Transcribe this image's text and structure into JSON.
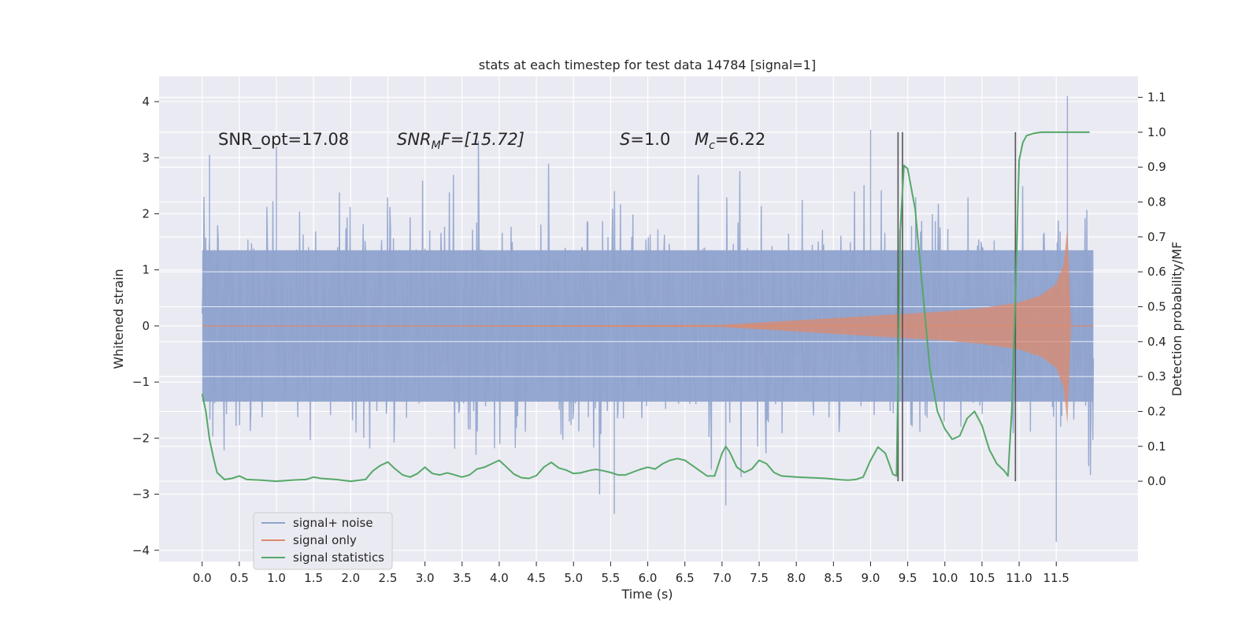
{
  "chart_data": {
    "type": "line",
    "title": "stats at each timestep for test data 14784 [signal=1]",
    "xlabel": "Time (s)",
    "ylabel": "Whitened strain",
    "ylabel_right": "Detection probability/MF",
    "xlim": [
      -0.58,
      12.6
    ],
    "ylim": [
      -4.2,
      4.45
    ],
    "ylim_right": [
      -0.23,
      1.16
    ],
    "x_ticks": [
      "0.0",
      "0.5",
      "1.0",
      "1.5",
      "2.0",
      "2.5",
      "3.0",
      "3.5",
      "4.0",
      "4.5",
      "5.0",
      "5.5",
      "6.0",
      "6.5",
      "7.0",
      "7.5",
      "8.0",
      "8.5",
      "9.0",
      "9.5",
      "10.0",
      "10.5",
      "11.0",
      "11.5"
    ],
    "y_ticks_left": [
      "4",
      "3",
      "2",
      "1",
      "0",
      "−1",
      "−2",
      "−3",
      "−4"
    ],
    "y_ticks_right": [
      "1.1",
      "1.0",
      "0.9",
      "0.8",
      "0.7",
      "0.6",
      "0.5",
      "0.4",
      "0.3",
      "0.2",
      "0.1",
      "0.0"
    ],
    "grid": true,
    "legend_position": "lower-left",
    "annotations": [
      {
        "text": "SNR_opt=17.08",
        "x": 0.2
      },
      {
        "text": "SNR_MF=[15.72]",
        "x": 2.6
      },
      {
        "text": "S=1.0",
        "x": 5.6
      },
      {
        "text": "M_c=6.22",
        "x": 6.6
      }
    ],
    "vertical_lines_x": [
      9.37,
      9.43,
      10.95
    ],
    "series": [
      {
        "name": "signal+ noise",
        "axis": "left",
        "color": "#8fa3cd",
        "description_stats": {
          "x_start": 0.0,
          "x_end": 12.0,
          "typical_abs": 1.35,
          "max_peak": 4.1
        }
      },
      {
        "name": "signal only",
        "axis": "left",
        "color": "#dd8a6c",
        "envelope": {
          "x": [
            0.0,
            7.0,
            8.0,
            9.0,
            9.5,
            10.0,
            10.5,
            11.0,
            11.3,
            11.5,
            11.6,
            11.65,
            11.7,
            12.0
          ],
          "amp": [
            0.0,
            0.02,
            0.1,
            0.18,
            0.22,
            0.26,
            0.32,
            0.42,
            0.55,
            0.75,
            1.1,
            1.75,
            0.0,
            0.0
          ]
        }
      },
      {
        "name": "signal statistics",
        "axis": "right",
        "color": "#55a868",
        "x": [
          0.0,
          0.05,
          0.1,
          0.15,
          0.2,
          0.3,
          0.4,
          0.5,
          0.6,
          0.8,
          1.0,
          1.2,
          1.4,
          1.5,
          1.6,
          1.8,
          2.0,
          2.2,
          2.3,
          2.4,
          2.5,
          2.6,
          2.7,
          2.8,
          2.9,
          3.0,
          3.1,
          3.2,
          3.3,
          3.4,
          3.5,
          3.6,
          3.7,
          3.8,
          3.9,
          4.0,
          4.1,
          4.2,
          4.3,
          4.4,
          4.5,
          4.6,
          4.7,
          4.8,
          4.9,
          5.0,
          5.1,
          5.2,
          5.3,
          5.4,
          5.5,
          5.6,
          5.7,
          5.8,
          5.9,
          6.0,
          6.1,
          6.2,
          6.3,
          6.4,
          6.5,
          6.6,
          6.7,
          6.8,
          6.9,
          7.0,
          7.05,
          7.1,
          7.2,
          7.3,
          7.4,
          7.5,
          7.6,
          7.7,
          7.8,
          8.0,
          8.2,
          8.4,
          8.6,
          8.7,
          8.8,
          8.9,
          9.0,
          9.1,
          9.2,
          9.25,
          9.3,
          9.35,
          9.4,
          9.45,
          9.5,
          9.6,
          9.7,
          9.8,
          9.9,
          10.0,
          10.1,
          10.2,
          10.3,
          10.4,
          10.5,
          10.6,
          10.7,
          10.8,
          10.85,
          10.9,
          10.95,
          11.0,
          11.05,
          11.1,
          11.2,
          11.3,
          11.4,
          11.5,
          11.6,
          11.7,
          11.8,
          11.9,
          11.95
        ],
        "values": [
          0.25,
          0.2,
          0.12,
          0.07,
          0.025,
          0.005,
          0.008,
          0.015,
          0.005,
          0.003,
          0.0,
          0.003,
          0.005,
          0.012,
          0.008,
          0.005,
          0.0,
          0.005,
          0.03,
          0.045,
          0.055,
          0.035,
          0.018,
          0.012,
          0.022,
          0.04,
          0.022,
          0.018,
          0.024,
          0.018,
          0.012,
          0.018,
          0.035,
          0.04,
          0.05,
          0.06,
          0.04,
          0.02,
          0.01,
          0.008,
          0.016,
          0.04,
          0.054,
          0.038,
          0.032,
          0.022,
          0.024,
          0.03,
          0.034,
          0.03,
          0.025,
          0.018,
          0.018,
          0.026,
          0.034,
          0.04,
          0.035,
          0.05,
          0.06,
          0.065,
          0.06,
          0.045,
          0.03,
          0.015,
          0.015,
          0.08,
          0.1,
          0.085,
          0.04,
          0.025,
          0.035,
          0.06,
          0.05,
          0.025,
          0.015,
          0.012,
          0.01,
          0.008,
          0.004,
          0.003,
          0.005,
          0.012,
          0.06,
          0.098,
          0.08,
          0.05,
          0.02,
          0.015,
          0.72,
          0.905,
          0.895,
          0.78,
          0.55,
          0.32,
          0.2,
          0.15,
          0.12,
          0.13,
          0.18,
          0.2,
          0.16,
          0.09,
          0.05,
          0.03,
          0.015,
          0.2,
          0.53,
          0.92,
          0.97,
          0.99,
          0.997,
          1.0,
          1.0,
          1.0,
          1.0,
          1.0,
          1.0,
          1.0,
          1.0
        ]
      }
    ]
  },
  "annotations_text": {
    "snr_opt": "SNR_opt=17.08",
    "snr_mf_main": "SNR",
    "snr_mf_sub": "M",
    "snr_mf_rest": "F=[15.72]",
    "s_main": "S",
    "s_rest": "=1.0",
    "mc_main": "M",
    "mc_sub": "c",
    "mc_rest": "=6.22"
  },
  "legend": [
    {
      "label": "signal+ noise",
      "color": "#8fa3cd"
    },
    {
      "label": "signal only",
      "color": "#dd8a6c"
    },
    {
      "label": "signal statistics",
      "color": "#55a868"
    }
  ]
}
